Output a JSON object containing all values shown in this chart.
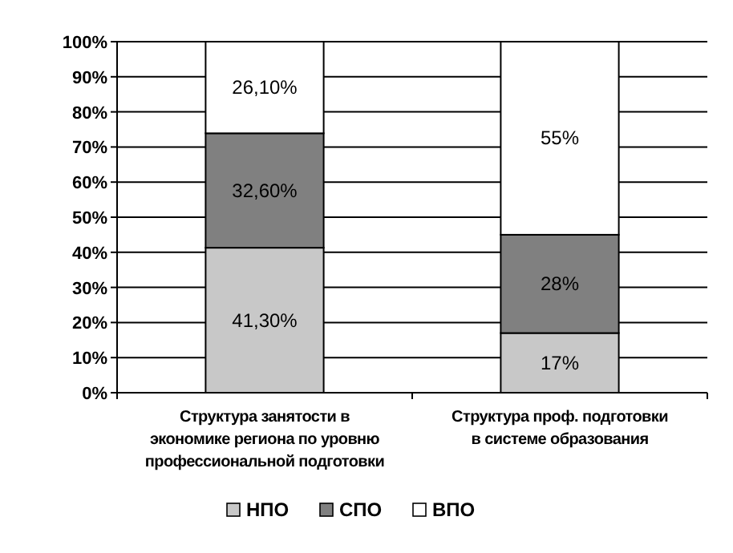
{
  "chart_data": {
    "type": "bar",
    "stacked": true,
    "categories": [
      "Структура занятости в экономике  региона по уровню профессиональной подготовки",
      "Структура  проф. подготовки в системе образования"
    ],
    "series": [
      {
        "name": "НПО",
        "color": "#c8c8c8",
        "values": [
          41.3,
          17
        ],
        "value_labels": [
          "41,30%",
          "17%"
        ]
      },
      {
        "name": "СПО",
        "color": "#808080",
        "values": [
          32.6,
          28
        ],
        "value_labels": [
          "32,60%",
          "28%"
        ]
      },
      {
        "name": "ВПО",
        "color": "#ffffff",
        "values": [
          26.1,
          55
        ],
        "value_labels": [
          "26,10%",
          "55%"
        ]
      }
    ],
    "ylim": [
      0,
      100
    ],
    "yticks": [
      {
        "value": 0,
        "label": "0%"
      },
      {
        "value": 10,
        "label": "10%"
      },
      {
        "value": 20,
        "label": "20%"
      },
      {
        "value": 30,
        "label": "30%"
      },
      {
        "value": 40,
        "label": "40%"
      },
      {
        "value": 50,
        "label": "50%"
      },
      {
        "value": 60,
        "label": "60%"
      },
      {
        "value": 70,
        "label": "70%"
      },
      {
        "value": 80,
        "label": "80%"
      },
      {
        "value": 90,
        "label": "90%"
      },
      {
        "value": 100,
        "label": "100%"
      }
    ],
    "grid": "y",
    "legend": "bottom"
  }
}
